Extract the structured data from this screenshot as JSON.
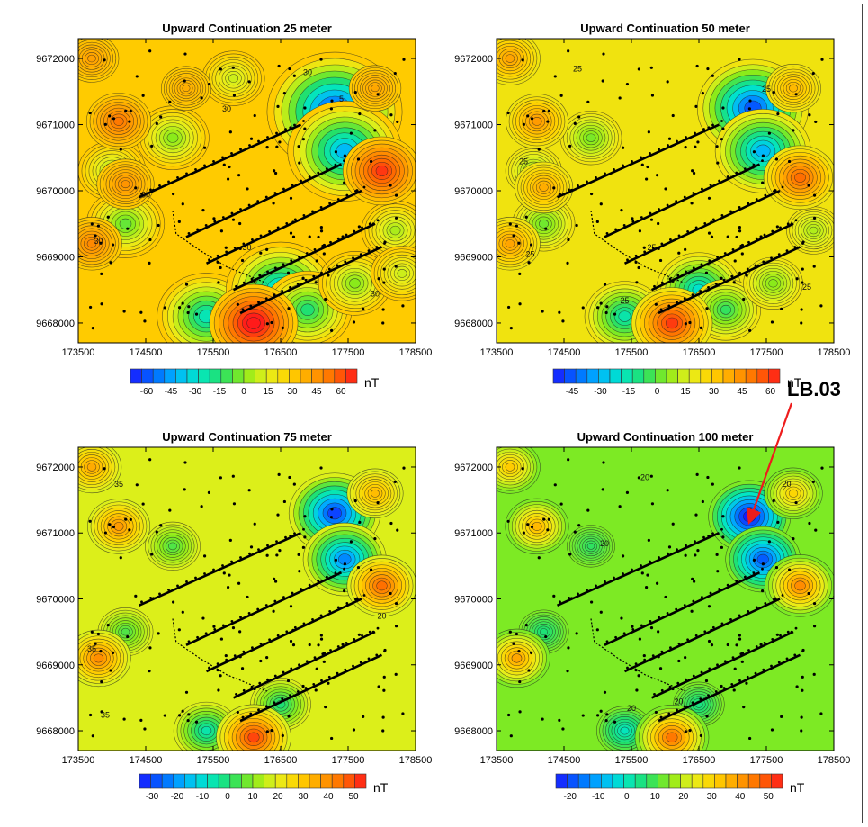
{
  "chart_data": [
    {
      "type": "heatmap",
      "title": "Upward Continuation 25 meter",
      "x_ticks": [
        173500,
        174500,
        175500,
        176500,
        177500,
        178500
      ],
      "y_ticks": [
        9668000,
        9669000,
        9670000,
        9671000,
        9672000
      ],
      "xlim": [
        173500,
        178500
      ],
      "ylim": [
        9667700,
        9672300
      ],
      "colorbar": {
        "ticks": [
          -60,
          -45,
          -30,
          -15,
          0,
          15,
          30,
          45,
          60
        ],
        "range": [
          -70,
          70
        ],
        "unit": "nT"
      },
      "contour_labels": [
        {
          "text": "30",
          "x": 176900,
          "y": 9671750
        },
        {
          "text": "5",
          "x": 177400,
          "y": 9671350
        },
        {
          "text": "30",
          "x": 175700,
          "y": 9671200
        },
        {
          "text": "30",
          "x": 174500,
          "y": 9669900
        },
        {
          "text": "30",
          "x": 173800,
          "y": 9669200
        },
        {
          "text": "30",
          "x": 176000,
          "y": 9669100
        },
        {
          "text": "30",
          "x": 177900,
          "y": 9668400
        }
      ],
      "anomalies": [
        {
          "x": 177300,
          "y": 9671200,
          "value": -60
        },
        {
          "x": 177450,
          "y": 9670600,
          "value": -40
        },
        {
          "x": 175400,
          "y": 9668100,
          "value": -25
        },
        {
          "x": 176500,
          "y": 9668500,
          "value": -35
        },
        {
          "x": 174900,
          "y": 9670800,
          "value": 0
        },
        {
          "x": 174000,
          "y": 9670300,
          "value": 5
        },
        {
          "x": 174200,
          "y": 9669500,
          "value": -5
        },
        {
          "x": 176900,
          "y": 9668200,
          "value": -15
        },
        {
          "x": 177600,
          "y": 9668600,
          "value": 0
        },
        {
          "x": 178200,
          "y": 9669400,
          "value": 5
        },
        {
          "x": 178300,
          "y": 9668750,
          "value": 10
        },
        {
          "x": 175800,
          "y": 9671700,
          "value": 10
        },
        {
          "x": 176100,
          "y": 9668000,
          "value": 75
        },
        {
          "x": 178000,
          "y": 9670300,
          "value": 65
        },
        {
          "x": 174100,
          "y": 9671050,
          "value": 52
        },
        {
          "x": 173700,
          "y": 9669200,
          "value": 48
        },
        {
          "x": 177900,
          "y": 9671550,
          "value": 40
        },
        {
          "x": 175100,
          "y": 9671550,
          "value": 38
        },
        {
          "x": 174200,
          "y": 9670100,
          "value": 45
        },
        {
          "x": 173700,
          "y": 9672000,
          "value": 42
        }
      ]
    },
    {
      "type": "heatmap",
      "title": "Upward Continuation 50 meter",
      "x_ticks": [
        173500,
        174500,
        175500,
        176500,
        177500,
        178500
      ],
      "y_ticks": [
        9668000,
        9669000,
        9670000,
        9671000,
        9672000
      ],
      "xlim": [
        173500,
        178500
      ],
      "ylim": [
        9667700,
        9672300
      ],
      "colorbar": {
        "ticks": [
          -45,
          -30,
          -15,
          0,
          15,
          30,
          45,
          60
        ],
        "range": [
          -55,
          65
        ],
        "unit": "nT"
      },
      "contour_labels": [
        {
          "text": "25",
          "x": 174700,
          "y": 9671800
        },
        {
          "text": "25",
          "x": 177500,
          "y": 9671500
        },
        {
          "text": "25",
          "x": 173900,
          "y": 9670400
        },
        {
          "text": "25",
          "x": 174000,
          "y": 9669000
        },
        {
          "text": "25",
          "x": 175800,
          "y": 9669100
        },
        {
          "text": "25",
          "x": 175400,
          "y": 9668300
        },
        {
          "text": "25",
          "x": 178100,
          "y": 9668500
        }
      ],
      "anomalies": [
        {
          "x": 177300,
          "y": 9671250,
          "value": -45
        },
        {
          "x": 177450,
          "y": 9670600,
          "value": -30
        },
        {
          "x": 175400,
          "y": 9668100,
          "value": -15
        },
        {
          "x": 176500,
          "y": 9668500,
          "value": -20
        },
        {
          "x": 174900,
          "y": 9670800,
          "value": 3
        },
        {
          "x": 174050,
          "y": 9670300,
          "value": 8
        },
        {
          "x": 174200,
          "y": 9669500,
          "value": 2
        },
        {
          "x": 176900,
          "y": 9668200,
          "value": -5
        },
        {
          "x": 177600,
          "y": 9668600,
          "value": 5
        },
        {
          "x": 178200,
          "y": 9669400,
          "value": 10
        },
        {
          "x": 176100,
          "y": 9668000,
          "value": 60
        },
        {
          "x": 178000,
          "y": 9670200,
          "value": 52
        },
        {
          "x": 174100,
          "y": 9671050,
          "value": 42
        },
        {
          "x": 173700,
          "y": 9669200,
          "value": 40
        },
        {
          "x": 177900,
          "y": 9671550,
          "value": 35
        },
        {
          "x": 174200,
          "y": 9670050,
          "value": 38
        },
        {
          "x": 173700,
          "y": 9672000,
          "value": 40
        }
      ]
    },
    {
      "type": "heatmap",
      "title": "Upward Continuation 75 meter",
      "x_ticks": [
        173500,
        174500,
        175500,
        176500,
        177500,
        178500
      ],
      "y_ticks": [
        9668000,
        9669000,
        9670000,
        9671000,
        9672000
      ],
      "xlim": [
        173500,
        178500
      ],
      "ylim": [
        9667700,
        9672300
      ],
      "colorbar": {
        "ticks": [
          -30,
          -20,
          -10,
          0,
          10,
          20,
          30,
          40,
          50
        ],
        "range": [
          -35,
          55
        ],
        "unit": "nT"
      },
      "contour_labels": [
        {
          "text": "35",
          "x": 174100,
          "y": 9671700
        },
        {
          "text": "35",
          "x": 173700,
          "y": 9669200
        },
        {
          "text": "35",
          "x": 173900,
          "y": 9668200
        },
        {
          "text": "20",
          "x": 178000,
          "y": 9669700
        }
      ],
      "anomalies": [
        {
          "x": 177300,
          "y": 9671300,
          "value": -30
        },
        {
          "x": 177450,
          "y": 9670600,
          "value": -22
        },
        {
          "x": 175400,
          "y": 9668000,
          "value": -5
        },
        {
          "x": 176500,
          "y": 9668400,
          "value": 0
        },
        {
          "x": 174900,
          "y": 9670800,
          "value": 5
        },
        {
          "x": 174200,
          "y": 9669500,
          "value": 5
        },
        {
          "x": 176100,
          "y": 9667900,
          "value": 50
        },
        {
          "x": 178000,
          "y": 9670200,
          "value": 45
        },
        {
          "x": 173800,
          "y": 9669100,
          "value": 40
        },
        {
          "x": 174100,
          "y": 9671100,
          "value": 38
        },
        {
          "x": 177900,
          "y": 9671600,
          "value": 32
        },
        {
          "x": 173700,
          "y": 9672000,
          "value": 35
        }
      ]
    },
    {
      "type": "heatmap",
      "title": "Upward Continuation 100 meter",
      "x_ticks": [
        173500,
        174500,
        175500,
        176500,
        177500,
        178500
      ],
      "y_ticks": [
        9668000,
        9669000,
        9670000,
        9671000,
        9672000
      ],
      "xlim": [
        173500,
        178500
      ],
      "ylim": [
        9667700,
        9672300
      ],
      "colorbar": {
        "ticks": [
          -20,
          -10,
          0,
          10,
          20,
          30,
          40,
          50
        ],
        "range": [
          -25,
          55
        ],
        "unit": "nT"
      },
      "contour_labels": [
        {
          "text": "20",
          "x": 175700,
          "y": 9671800
        },
        {
          "text": "20",
          "x": 175100,
          "y": 9670800
        },
        {
          "text": "20",
          "x": 177800,
          "y": 9671700
        },
        {
          "text": "20",
          "x": 175500,
          "y": 9668300
        },
        {
          "text": "20",
          "x": 176200,
          "y": 9668400
        }
      ],
      "anomalies": [
        {
          "x": 177250,
          "y": 9671250,
          "value": -25
        },
        {
          "x": 177450,
          "y": 9670600,
          "value": -18
        },
        {
          "x": 175400,
          "y": 9668000,
          "value": 0
        },
        {
          "x": 176500,
          "y": 9668400,
          "value": 5
        },
        {
          "x": 174900,
          "y": 9670800,
          "value": 8
        },
        {
          "x": 174200,
          "y": 9669500,
          "value": 6
        },
        {
          "x": 176100,
          "y": 9667900,
          "value": 45
        },
        {
          "x": 178000,
          "y": 9670200,
          "value": 42
        },
        {
          "x": 173800,
          "y": 9669100,
          "value": 38
        },
        {
          "x": 174100,
          "y": 9671100,
          "value": 35
        },
        {
          "x": 177900,
          "y": 9671600,
          "value": 30
        },
        {
          "x": 173700,
          "y": 9672000,
          "value": 32
        }
      ]
    }
  ],
  "annotation": {
    "label": "LB.03",
    "target_panel": 3,
    "target": {
      "x": 177200,
      "y": 9671100
    },
    "color": "#ee1c1c"
  },
  "survey_lines": [
    {
      "x1": 174400,
      "y1": 9669900,
      "x2": 176800,
      "y2": 9671000
    },
    {
      "x1": 175100,
      "y1": 9669300,
      "x2": 177400,
      "y2": 9670400
    },
    {
      "x1": 175400,
      "y1": 9668900,
      "x2": 177700,
      "y2": 9670000
    },
    {
      "x1": 175800,
      "y1": 9668500,
      "x2": 177900,
      "y2": 9669500
    },
    {
      "x1": 175900,
      "y1": 9668150,
      "x2": 178000,
      "y2": 9669150
    }
  ],
  "colors": {
    "scale": [
      "#1a1aff",
      "#0066ff",
      "#00b4ff",
      "#00e6c8",
      "#22e06a",
      "#8aeb1a",
      "#e6ef1a",
      "#ffd200",
      "#ffa000",
      "#ff6a00",
      "#ff1a1a"
    ]
  }
}
